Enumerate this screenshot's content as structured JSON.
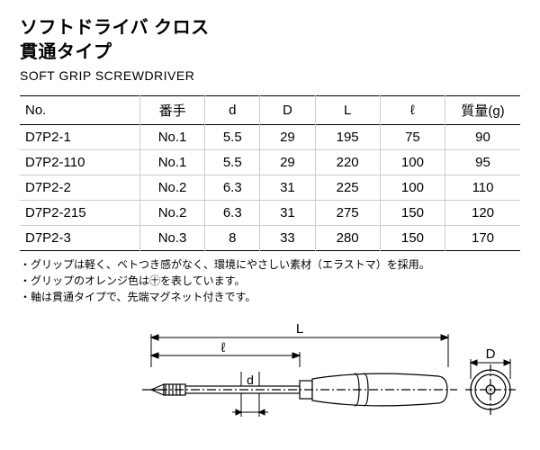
{
  "title_jp_line1": "ソフトドライバ クロス",
  "title_jp_line2": "貫通タイプ",
  "title_en": "SOFT GRIP SCREWDRIVER",
  "table": {
    "columns": [
      "No.",
      "番手",
      "d",
      "D",
      "L",
      "ℓ",
      "質量(g)"
    ],
    "rows": [
      [
        "D7P2-1",
        "No.1",
        "5.5",
        "29",
        "195",
        "75",
        "90"
      ],
      [
        "D7P2-110",
        "No.1",
        "5.5",
        "29",
        "220",
        "100",
        "95"
      ],
      [
        "D7P2-2",
        "No.2",
        "6.3",
        "31",
        "225",
        "100",
        "110"
      ],
      [
        "D7P2-215",
        "No.2",
        "6.3",
        "31",
        "275",
        "150",
        "120"
      ],
      [
        "D7P2-3",
        "No.3",
        "8",
        "33",
        "280",
        "150",
        "170"
      ]
    ]
  },
  "notes": [
    "グリップは軽く、ベトつき感がなく、環境にやさしい素材（エラストマ）を採用。",
    "グリップのオレンジ色は㊉を表しています。",
    "軸は貫通タイプで、先端マグネット付きです。"
  ],
  "diagram": {
    "labels": {
      "L": "L",
      "l": "ℓ",
      "d": "d",
      "D": "D"
    },
    "stroke": "#000000",
    "fill_light": "#ffffff",
    "hatch": "#000000"
  },
  "styling": {
    "bg": "#ffffff",
    "text": "#000000",
    "rule_dark": "#000000",
    "rule_light": "#cccccc",
    "title_fontsize": 20,
    "subtitle_fontsize": 14,
    "table_fontsize": 15,
    "notes_fontsize": 12
  }
}
